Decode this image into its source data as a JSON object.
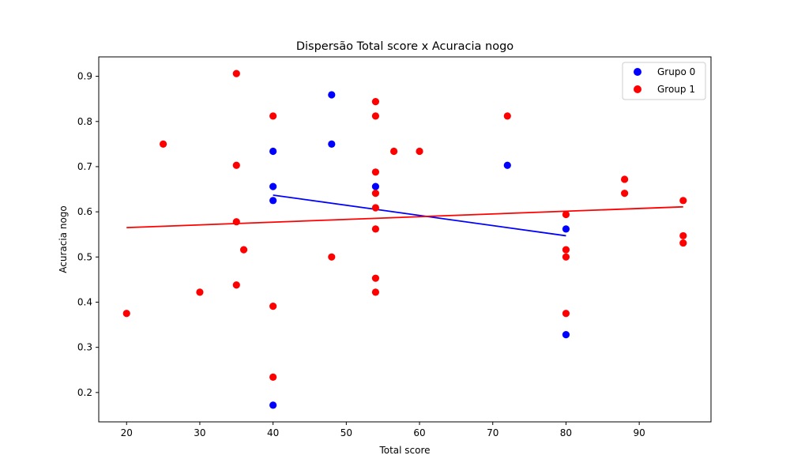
{
  "chart_data": {
    "type": "scatter",
    "title": "Dispersão Total score x Acuracia nogo",
    "xlabel": "Total score",
    "ylabel": "Acuracia nogo",
    "xlim": [
      16.2,
      99.8
    ],
    "ylim": [
      0.135,
      0.943
    ],
    "xticks": [
      20,
      30,
      40,
      50,
      60,
      70,
      80,
      90
    ],
    "yticks": [
      0.2,
      0.3,
      0.4,
      0.5,
      0.6,
      0.7,
      0.8,
      0.9
    ],
    "grid": false,
    "legend_position": "top-right",
    "series": [
      {
        "name": "Grupo 0",
        "color": "#0000ff",
        "points": [
          [
            40,
            0.172
          ],
          [
            40,
            0.625
          ],
          [
            40,
            0.656
          ],
          [
            40,
            0.734
          ],
          [
            48,
            0.859
          ],
          [
            48,
            0.75
          ],
          [
            54,
            0.656
          ],
          [
            72,
            0.703
          ],
          [
            80,
            0.562
          ],
          [
            80,
            0.328
          ]
        ],
        "trendline": [
          [
            40,
            0.637
          ],
          [
            80,
            0.547
          ]
        ]
      },
      {
        "name": "Group 1",
        "color": "#ff0000",
        "points": [
          [
            20,
            0.375
          ],
          [
            25,
            0.75
          ],
          [
            30,
            0.422
          ],
          [
            35,
            0.906
          ],
          [
            35,
            0.703
          ],
          [
            35,
            0.578
          ],
          [
            35,
            0.438
          ],
          [
            36,
            0.516
          ],
          [
            40,
            0.812
          ],
          [
            40,
            0.391
          ],
          [
            40,
            0.234
          ],
          [
            48,
            0.5
          ],
          [
            54,
            0.844
          ],
          [
            54,
            0.812
          ],
          [
            54,
            0.688
          ],
          [
            54,
            0.641
          ],
          [
            54,
            0.609
          ],
          [
            54,
            0.562
          ],
          [
            54,
            0.453
          ],
          [
            54,
            0.422
          ],
          [
            56.5,
            0.734
          ],
          [
            60,
            0.734
          ],
          [
            72,
            0.812
          ],
          [
            80,
            0.594
          ],
          [
            80,
            0.516
          ],
          [
            80,
            0.5
          ],
          [
            80,
            0.375
          ],
          [
            88,
            0.672
          ],
          [
            88,
            0.641
          ],
          [
            96,
            0.625
          ],
          [
            96,
            0.547
          ],
          [
            96,
            0.531
          ]
        ],
        "trendline": [
          [
            20,
            0.565
          ],
          [
            96,
            0.611
          ]
        ]
      }
    ]
  }
}
